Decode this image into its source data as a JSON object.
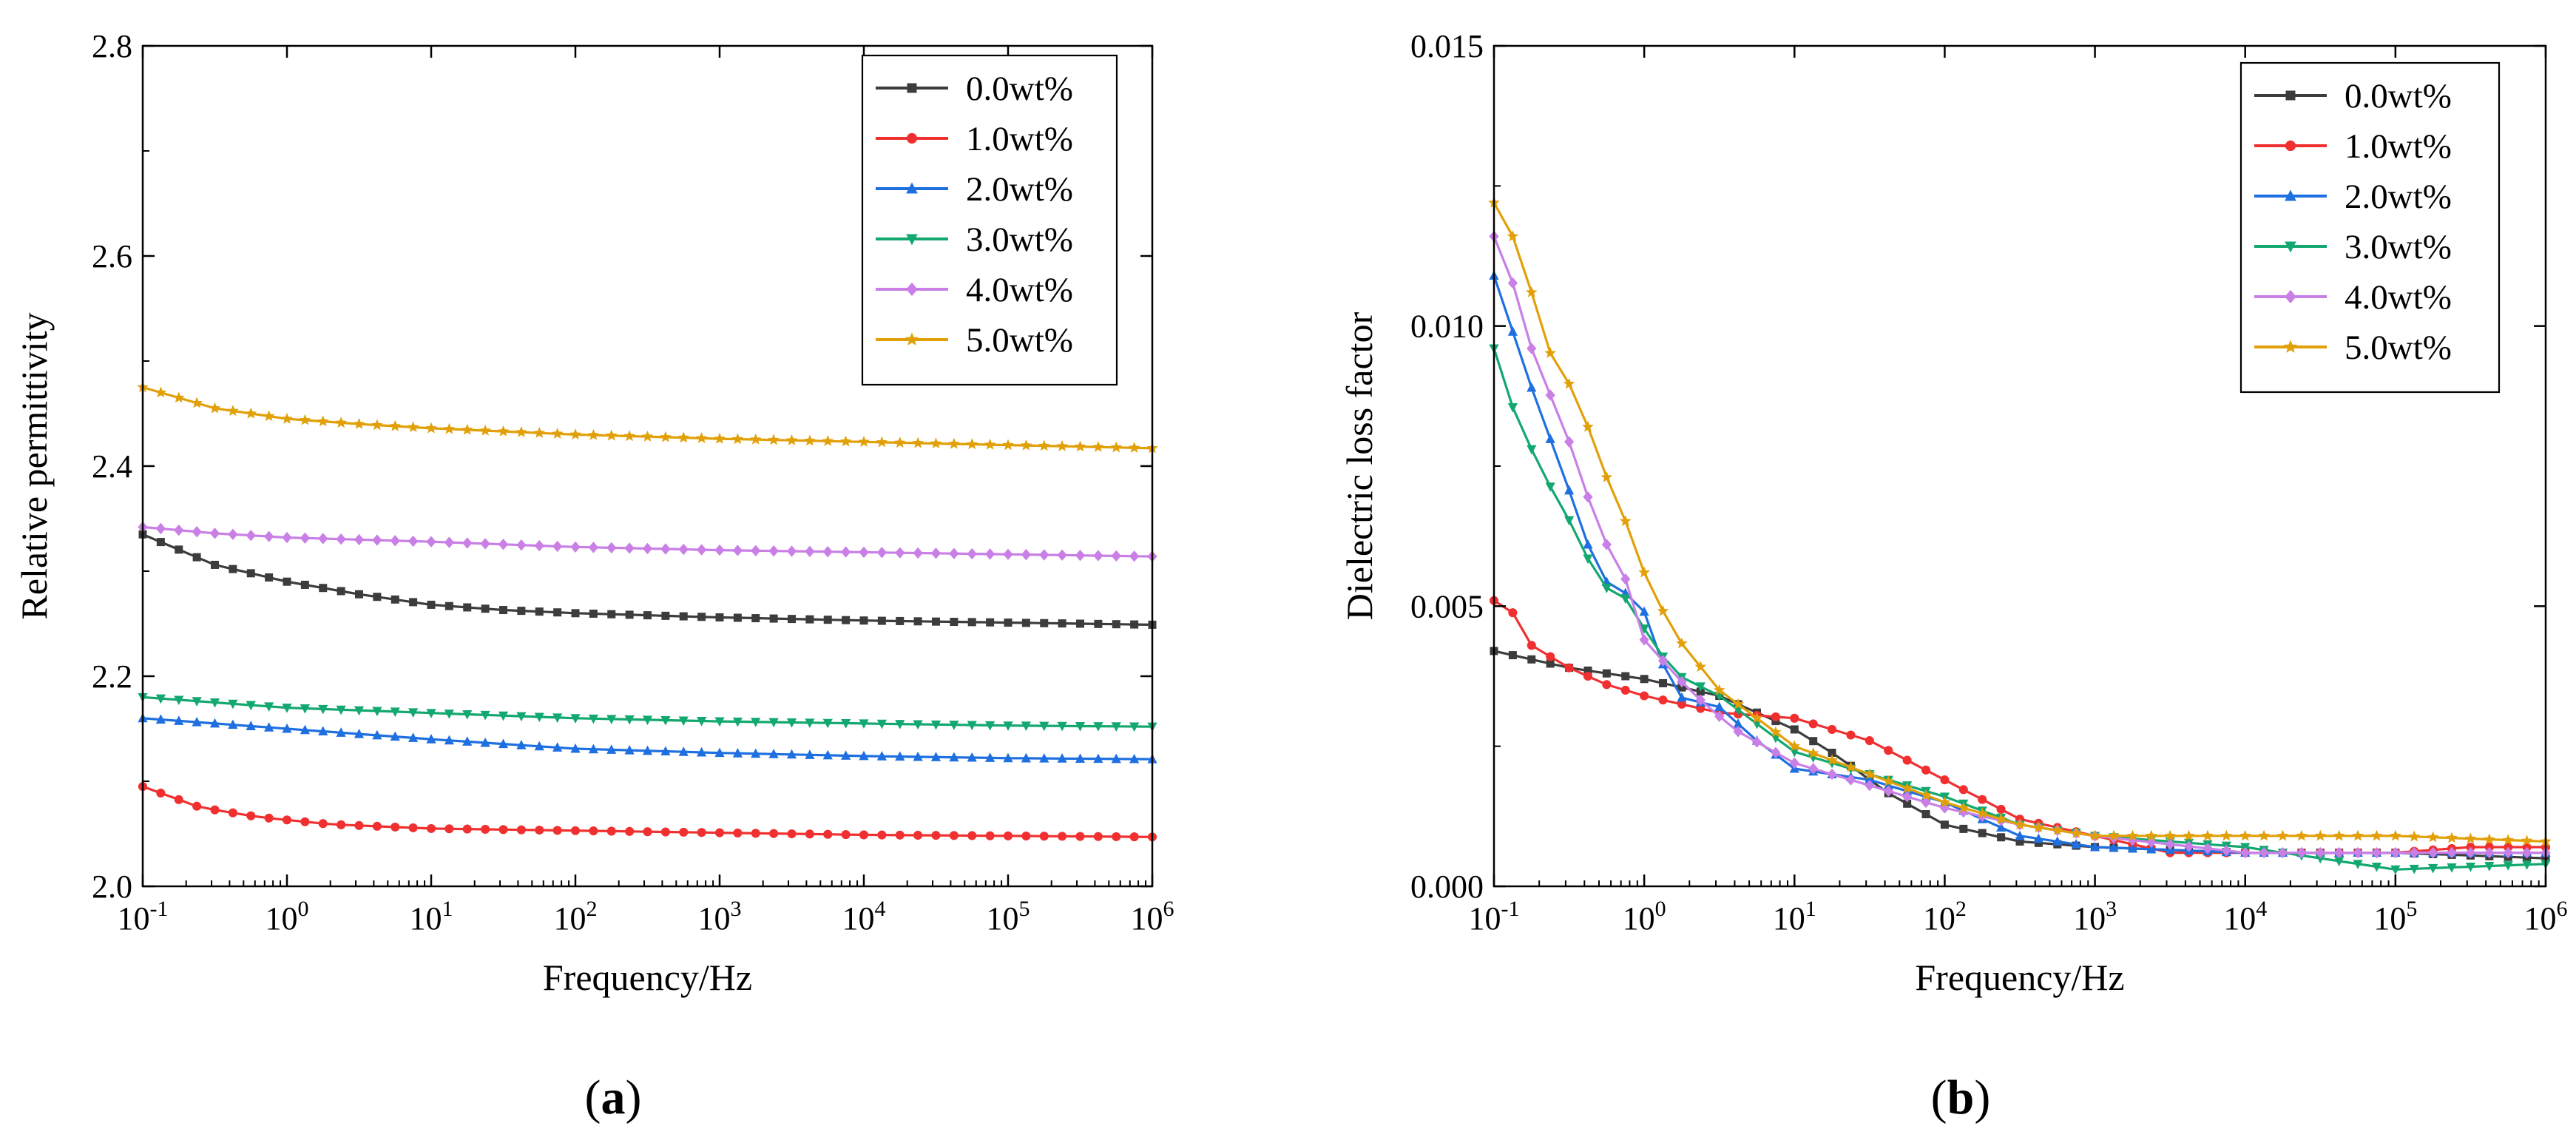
{
  "chart_data": [
    {
      "type": "line",
      "panel_label": "(a)",
      "xlabel": "Frequency/Hz",
      "ylabel": "Relative permittivity",
      "xscale": "log",
      "xlim": [
        0.1,
        1000000
      ],
      "ylim": [
        2.0,
        2.8
      ],
      "x_ticks": [
        {
          "base": "10",
          "exp": "-1"
        },
        {
          "base": "10",
          "exp": "0"
        },
        {
          "base": "10",
          "exp": "1"
        },
        {
          "base": "10",
          "exp": "2"
        },
        {
          "base": "10",
          "exp": "3"
        },
        {
          "base": "10",
          "exp": "4"
        },
        {
          "base": "10",
          "exp": "5"
        },
        {
          "base": "10",
          "exp": "6"
        }
      ],
      "y_ticks": [
        "2.0",
        "2.2",
        "2.4",
        "2.6",
        "2.8"
      ],
      "legend_position": "top-right",
      "grid": false,
      "series": [
        {
          "name": "0.0wt%",
          "color": "#3c3c3c",
          "marker": "square",
          "points": [
            [
              -1,
              2.335
            ],
            [
              -0.5,
              2.306
            ],
            [
              0,
              2.29
            ],
            [
              0.5,
              2.278
            ],
            [
              1,
              2.268
            ],
            [
              1.5,
              2.263
            ],
            [
              2,
              2.26
            ],
            [
              3,
              2.256
            ],
            [
              4,
              2.253
            ],
            [
              5,
              2.251
            ],
            [
              6,
              2.249
            ]
          ]
        },
        {
          "name": "1.0wt%",
          "color": "#f03030",
          "marker": "circle",
          "points": [
            [
              -1,
              2.095
            ],
            [
              -0.6,
              2.075
            ],
            [
              -0.2,
              2.066
            ],
            [
              0.3,
              2.059
            ],
            [
              1,
              2.055
            ],
            [
              2,
              2.053
            ],
            [
              3,
              2.051
            ],
            [
              4,
              2.049
            ],
            [
              5,
              2.048
            ],
            [
              6,
              2.047
            ]
          ]
        },
        {
          "name": "2.0wt%",
          "color": "#1e6fe0",
          "marker": "triangle-up",
          "points": [
            [
              -1,
              2.16
            ],
            [
              0,
              2.15
            ],
            [
              1,
              2.14
            ],
            [
              2,
              2.131
            ],
            [
              3,
              2.127
            ],
            [
              4,
              2.124
            ],
            [
              5,
              2.122
            ],
            [
              6,
              2.121
            ]
          ]
        },
        {
          "name": "3.0wt%",
          "color": "#12a870",
          "marker": "triangle-down",
          "points": [
            [
              -1,
              2.18
            ],
            [
              0,
              2.17
            ],
            [
              1,
              2.165
            ],
            [
              2,
              2.16
            ],
            [
              3,
              2.157
            ],
            [
              4,
              2.155
            ],
            [
              5,
              2.153
            ],
            [
              6,
              2.152
            ]
          ]
        },
        {
          "name": "4.0wt%",
          "color": "#c97fe6",
          "marker": "diamond",
          "points": [
            [
              -1,
              2.342
            ],
            [
              -0.5,
              2.336
            ],
            [
              0,
              2.332
            ],
            [
              1,
              2.328
            ],
            [
              2,
              2.323
            ],
            [
              3,
              2.32
            ],
            [
              4,
              2.318
            ],
            [
              5,
              2.316
            ],
            [
              6,
              2.314
            ]
          ]
        },
        {
          "name": "5.0wt%",
          "color": "#e2a008",
          "marker": "star",
          "points": [
            [
              -1,
              2.475
            ],
            [
              -0.5,
              2.455
            ],
            [
              0,
              2.445
            ],
            [
              0.5,
              2.44
            ],
            [
              1,
              2.436
            ],
            [
              2,
              2.43
            ],
            [
              3,
              2.426
            ],
            [
              4,
              2.423
            ],
            [
              5,
              2.42
            ],
            [
              6,
              2.417
            ]
          ]
        }
      ]
    },
    {
      "type": "line",
      "panel_label": "(b)",
      "xlabel": "Frequency/Hz",
      "ylabel": "Dielectric loss factor",
      "xscale": "log",
      "xlim": [
        0.1,
        1000000
      ],
      "ylim": [
        0.0,
        0.015
      ],
      "x_ticks": [
        {
          "base": "10",
          "exp": "-1"
        },
        {
          "base": "10",
          "exp": "0"
        },
        {
          "base": "10",
          "exp": "1"
        },
        {
          "base": "10",
          "exp": "2"
        },
        {
          "base": "10",
          "exp": "3"
        },
        {
          "base": "10",
          "exp": "4"
        },
        {
          "base": "10",
          "exp": "5"
        },
        {
          "base": "10",
          "exp": "6"
        }
      ],
      "y_ticks": [
        "0.000",
        "0.005",
        "0.010",
        "0.015"
      ],
      "legend_position": "top-right",
      "grid": false,
      "series": [
        {
          "name": "0.0wt%",
          "color": "#3c3c3c",
          "marker": "square",
          "points": [
            [
              -1,
              0.0042
            ],
            [
              -0.5,
              0.0039
            ],
            [
              0,
              0.0037
            ],
            [
              0.5,
              0.0034
            ],
            [
              1,
              0.0028
            ],
            [
              1.3,
              0.0023
            ],
            [
              1.6,
              0.0017
            ],
            [
              2,
              0.0011
            ],
            [
              2.5,
              0.0008
            ],
            [
              3,
              0.0007
            ],
            [
              4,
              0.0006
            ],
            [
              5,
              0.0006
            ],
            [
              6,
              0.0005
            ]
          ]
        },
        {
          "name": "1.0wt%",
          "color": "#f03030",
          "marker": "circle",
          "points": [
            [
              -1,
              0.0051
            ],
            [
              -0.9,
              0.005
            ],
            [
              -0.75,
              0.0043
            ],
            [
              -0.5,
              0.0039
            ],
            [
              -0.25,
              0.0036
            ],
            [
              0,
              0.0034
            ],
            [
              0.5,
              0.0031
            ],
            [
              1,
              0.003
            ],
            [
              1.5,
              0.0026
            ],
            [
              2,
              0.0019
            ],
            [
              2.5,
              0.0012
            ],
            [
              3,
              0.0009
            ],
            [
              3.5,
              0.0006
            ],
            [
              4,
              0.0006
            ],
            [
              5,
              0.0006
            ],
            [
              5.5,
              0.0007
            ],
            [
              6,
              0.0007
            ]
          ]
        },
        {
          "name": "2.0wt%",
          "color": "#1e6fe0",
          "marker": "triangle-up",
          "points": [
            [
              -1,
              0.0109
            ],
            [
              -0.9,
              0.0101
            ],
            [
              -0.75,
              0.0089
            ],
            [
              -0.6,
              0.0078
            ],
            [
              -0.45,
              0.0067
            ],
            [
              -0.3,
              0.0055
            ],
            [
              -0.15,
              0.0053
            ],
            [
              0,
              0.0049
            ],
            [
              0.2,
              0.0034
            ],
            [
              0.5,
              0.0032
            ],
            [
              0.75,
              0.0026
            ],
            [
              1,
              0.0021
            ],
            [
              1.5,
              0.0019
            ],
            [
              2,
              0.0015
            ],
            [
              2.5,
              0.0009
            ],
            [
              3,
              0.0007
            ],
            [
              4,
              0.0006
            ],
            [
              5,
              0.0006
            ],
            [
              6,
              0.0006
            ]
          ]
        },
        {
          "name": "3.0wt%",
          "color": "#12a870",
          "marker": "triangle-down",
          "points": [
            [
              -1,
              0.0096
            ],
            [
              -0.9,
              0.0087
            ],
            [
              -0.75,
              0.0078
            ],
            [
              -0.6,
              0.007
            ],
            [
              -0.45,
              0.0063
            ],
            [
              -0.3,
              0.0054
            ],
            [
              -0.1,
              0.0051
            ],
            [
              0,
              0.0046
            ],
            [
              0.2,
              0.0038
            ],
            [
              0.5,
              0.0034
            ],
            [
              1,
              0.0024
            ],
            [
              1.5,
              0.002
            ],
            [
              2,
              0.0016
            ],
            [
              2.5,
              0.0011
            ],
            [
              3,
              0.0009
            ],
            [
              4,
              0.0007
            ],
            [
              4.5,
              0.0005
            ],
            [
              5,
              0.0003
            ],
            [
              6,
              0.0004
            ]
          ]
        },
        {
          "name": "4.0wt%",
          "color": "#c97fe6",
          "marker": "diamond",
          "points": [
            [
              -1,
              0.0116
            ],
            [
              -0.9,
              0.011
            ],
            [
              -0.75,
              0.0096
            ],
            [
              -0.6,
              0.0086
            ],
            [
              -0.45,
              0.0076
            ],
            [
              -0.3,
              0.0063
            ],
            [
              -0.15,
              0.0057
            ],
            [
              0,
              0.0044
            ],
            [
              0.3,
              0.0035
            ],
            [
              0.6,
              0.0028
            ],
            [
              1,
              0.0022
            ],
            [
              1.5,
              0.0018
            ],
            [
              2,
              0.0014
            ],
            [
              2.5,
              0.0011
            ],
            [
              3,
              0.0009
            ],
            [
              4,
              0.0006
            ],
            [
              5,
              0.0006
            ],
            [
              6,
              0.0006
            ]
          ]
        },
        {
          "name": "5.0wt%",
          "color": "#e2a008",
          "marker": "star",
          "points": [
            [
              -1,
              0.0122
            ],
            [
              -0.9,
              0.0118
            ],
            [
              -0.75,
              0.0106
            ],
            [
              -0.6,
              0.0093
            ],
            [
              -0.45,
              0.0088
            ],
            [
              -0.3,
              0.0076
            ],
            [
              -0.15,
              0.0067
            ],
            [
              0,
              0.0056
            ],
            [
              0.2,
              0.0045
            ],
            [
              0.5,
              0.0035
            ],
            [
              1,
              0.0025
            ],
            [
              1.5,
              0.002
            ],
            [
              2,
              0.0015
            ],
            [
              2.5,
              0.0011
            ],
            [
              3,
              0.0009
            ],
            [
              4,
              0.0009
            ],
            [
              5,
              0.0009
            ],
            [
              6,
              0.0008
            ]
          ]
        }
      ]
    }
  ]
}
